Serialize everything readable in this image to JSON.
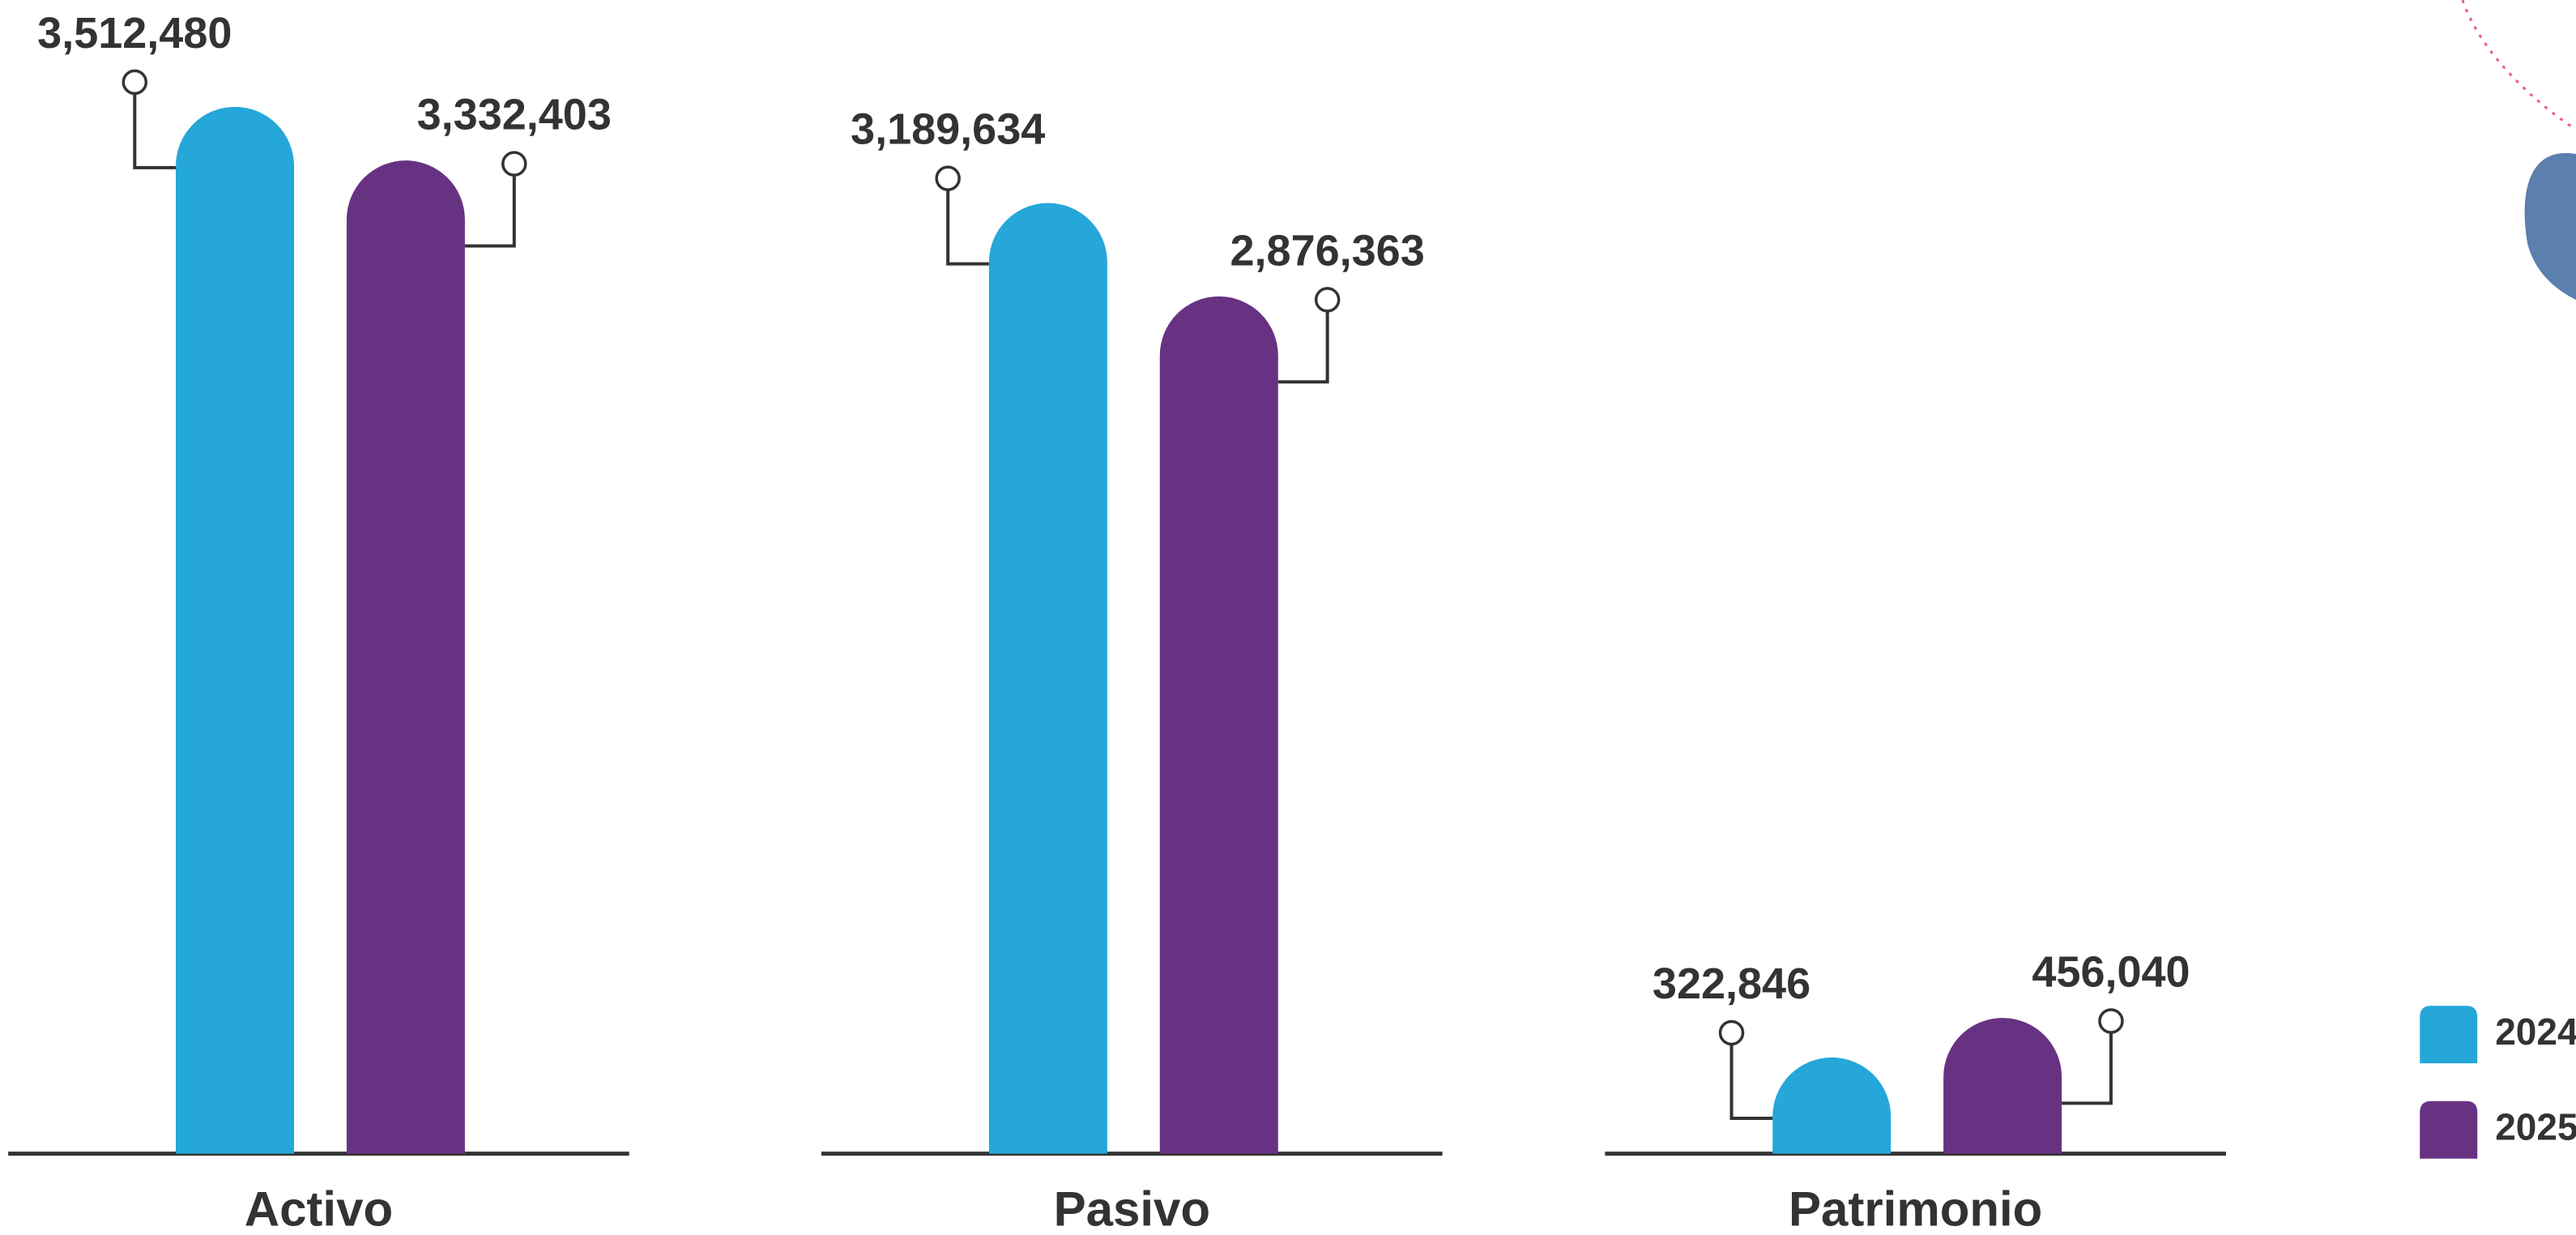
{
  "chart_data": {
    "type": "bar",
    "categories": [
      "Activo",
      "Pasivo",
      "Patrimonio"
    ],
    "series": [
      {
        "name": "2024",
        "color": "#25a7d9",
        "values": [
          3512480,
          3189634,
          322846
        ],
        "value_labels": [
          "3,512,480",
          "3,189,634",
          "322,846"
        ]
      },
      {
        "name": "2025",
        "color": "#683283",
        "values": [
          3332403,
          2876363,
          456040
        ],
        "value_labels": [
          "3,332,403",
          "2,876,363",
          "456,040"
        ]
      }
    ]
  }
}
